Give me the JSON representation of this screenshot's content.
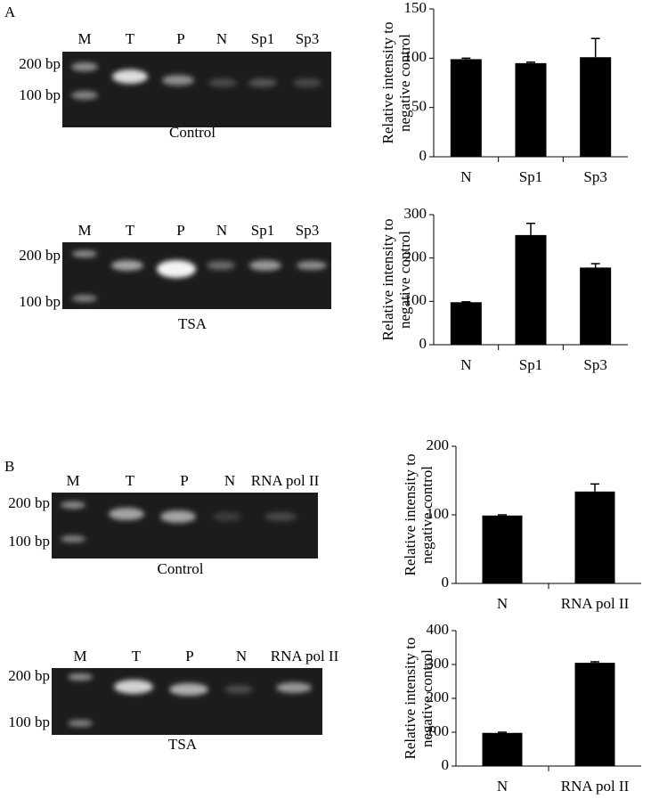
{
  "panels": [
    "A",
    "B"
  ],
  "gels": [
    {
      "lanes": [
        "M",
        "T",
        "P",
        "N",
        "Sp1",
        "Sp3"
      ],
      "markers": [
        "200 bp",
        "100 bp"
      ],
      "caption": "Control"
    },
    {
      "lanes": [
        "M",
        "T",
        "P",
        "N",
        "Sp1",
        "Sp3"
      ],
      "markers": [
        "200 bp",
        "100 bp"
      ],
      "caption": "TSA"
    },
    {
      "lanes": [
        "M",
        "T",
        "P",
        "N",
        "RNA pol II"
      ],
      "markers": [
        "200 bp",
        "100 bp"
      ],
      "caption": "Control"
    },
    {
      "lanes": [
        "M",
        "T",
        "P",
        "N",
        "RNA pol II"
      ],
      "markers": [
        "200 bp",
        "100 bp"
      ],
      "caption": "TSA"
    }
  ],
  "chart_data": [
    {
      "type": "bar",
      "ylabel": [
        "Relative  intensity to",
        "negative control"
      ],
      "categories": [
        "N",
        "Sp1",
        "Sp3"
      ],
      "values": [
        99,
        95,
        101
      ],
      "errors": [
        1,
        1,
        19
      ],
      "color": "#000000",
      "ylim": [
        0,
        150
      ],
      "yticks": [
        0,
        50,
        100,
        150
      ]
    },
    {
      "type": "bar",
      "ylabel": [
        "Relative intensity to",
        "negative control"
      ],
      "categories": [
        "N",
        "Sp1",
        "Sp3"
      ],
      "values": [
        98,
        253,
        178
      ],
      "errors": [
        1,
        27,
        9
      ],
      "color": "#000000",
      "ylim": [
        0,
        300
      ],
      "yticks": [
        0,
        100,
        200,
        300
      ]
    },
    {
      "type": "bar",
      "ylabel": [
        "Relative intensity to",
        "negative control"
      ],
      "categories": [
        "N",
        "RNA pol II"
      ],
      "values": [
        99,
        134
      ],
      "errors": [
        1,
        11
      ],
      "color": "#000000",
      "ylim": [
        0,
        200
      ],
      "yticks": [
        0,
        100,
        200
      ]
    },
    {
      "type": "bar",
      "ylabel": [
        "Relative intensity to",
        "negative control"
      ],
      "categories": [
        "N",
        "RNA pol II"
      ],
      "values": [
        98,
        305
      ],
      "errors": [
        2,
        3
      ],
      "color": "#000000",
      "ylim": [
        0,
        400
      ],
      "yticks": [
        0,
        100,
        200,
        300,
        400
      ]
    }
  ]
}
